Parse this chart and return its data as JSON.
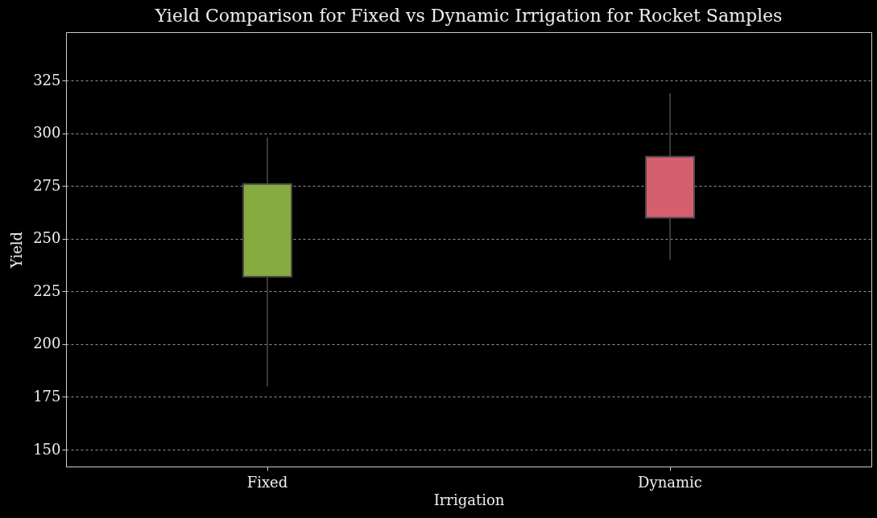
{
  "chart_data": {
    "type": "box",
    "title": "Yield Comparison for Fixed vs Dynamic Irrigation for Rocket Samples",
    "xlabel": "Irrigation",
    "ylabel": "Yield",
    "categories": [
      "Fixed",
      "Dynamic"
    ],
    "colors": [
      "#86ab3e",
      "#d55f6f"
    ],
    "boxes": [
      {
        "low": 180,
        "q1": 232,
        "q3": 276,
        "high": 298
      },
      {
        "low": 240,
        "q1": 260,
        "q3": 289,
        "high": 319
      }
    ],
    "ylim": [
      142,
      348
    ],
    "yticks": [
      150,
      175,
      200,
      225,
      250,
      275,
      300,
      325
    ],
    "grid": "y"
  }
}
